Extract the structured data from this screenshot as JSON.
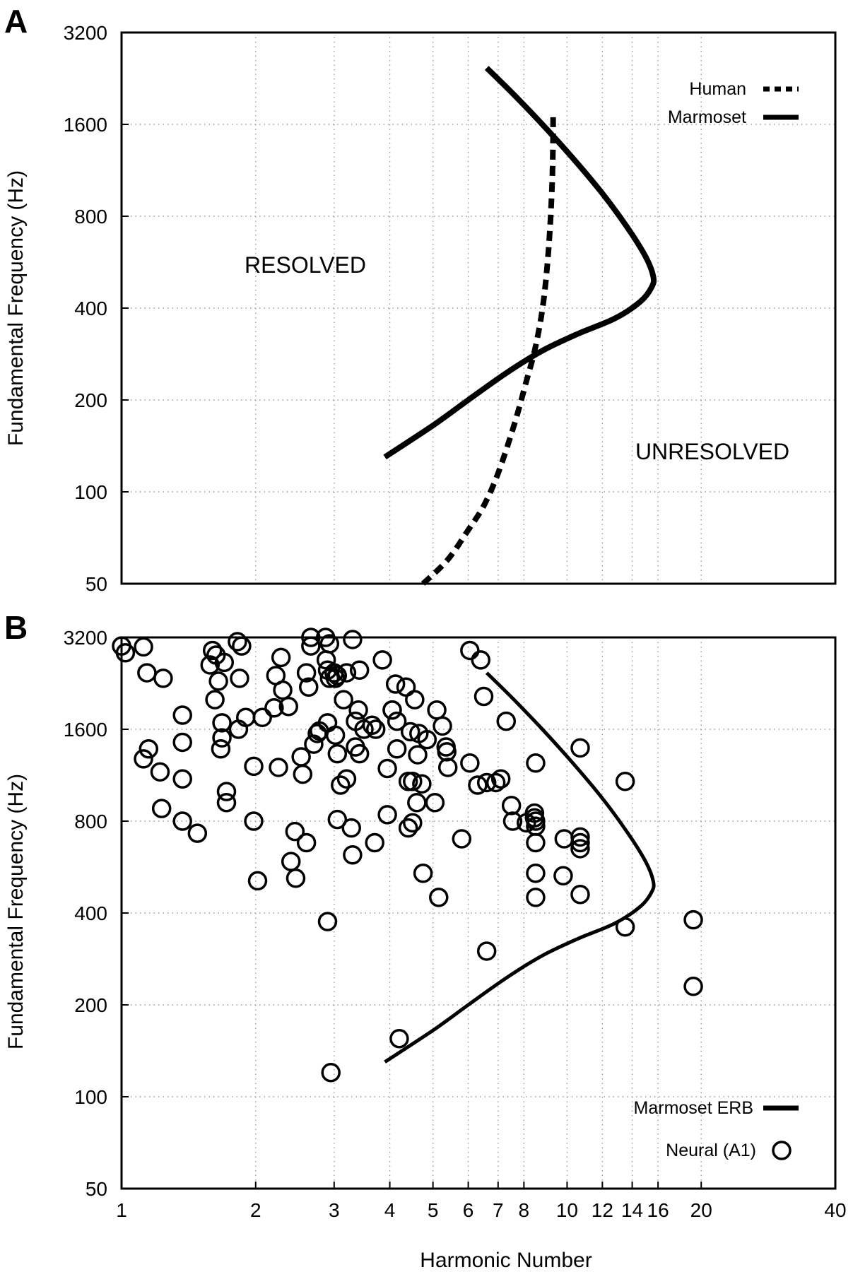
{
  "chart_data": [
    {
      "panel": "A",
      "type": "line",
      "xlabel": "",
      "ylabel": "Fundamental Frequency (Hz)",
      "xscale": "log",
      "yscale": "log2",
      "xlim": [
        1,
        40
      ],
      "ylim": [
        50,
        3200
      ],
      "yticks": [
        "50",
        "100",
        "200",
        "400",
        "800",
        "1600",
        "3200"
      ],
      "grid": true,
      "legend_position": "top-right",
      "annotations": [
        "RESOLVED",
        "UNRESOLVED"
      ],
      "series": [
        {
          "name": "Human",
          "style": "dashed",
          "x": [
            4.75,
            5.4,
            6.0,
            6.5,
            7.0,
            7.6,
            8.1,
            8.5,
            8.85,
            9.1,
            9.25,
            9.3,
            9.3
          ],
          "y": [
            50,
            60,
            75,
            90,
            115,
            165,
            230,
            300,
            420,
            640,
            1000,
            1450,
            1750
          ]
        },
        {
          "name": "Marmoset",
          "style": "solid",
          "x": [
            6.6,
            7.6,
            8.8,
            10.3,
            12.0,
            13.7,
            15.0,
            15.6,
            15.5,
            14.6,
            12.8,
            10.6,
            8.8,
            7.3,
            6.0,
            5.0,
            3.9
          ],
          "y": [
            2450,
            2000,
            1600,
            1240,
            950,
            730,
            590,
            510,
            470,
            420,
            370,
            330,
            290,
            245,
            200,
            165,
            130
          ]
        }
      ]
    },
    {
      "panel": "B",
      "type": "scatter",
      "xlabel": "Harmonic Number",
      "ylabel": "Fundamental Frequency (Hz)",
      "xscale": "log",
      "yscale": "log2",
      "xlim": [
        1,
        40
      ],
      "ylim": [
        50,
        3200
      ],
      "xticks": [
        "1",
        "2",
        "3",
        "4",
        "5",
        "6",
        "7",
        "8",
        "10",
        "12",
        "14",
        "16",
        "20",
        "40"
      ],
      "yticks": [
        "50",
        "100",
        "200",
        "400",
        "800",
        "1600",
        "3200"
      ],
      "grid": true,
      "legend_position": "bottom-right",
      "series": [
        {
          "name": "Marmoset ERB",
          "style": "solid",
          "x": [
            6.6,
            7.6,
            8.8,
            10.3,
            12.0,
            13.7,
            15.0,
            15.6,
            15.5,
            14.6,
            12.8,
            10.6,
            8.8,
            7.3,
            6.0,
            5.0,
            3.9
          ],
          "y": [
            2450,
            2000,
            1600,
            1240,
            950,
            730,
            590,
            510,
            470,
            420,
            370,
            330,
            290,
            245,
            200,
            165,
            130
          ]
        },
        {
          "name": "Neural (A1)",
          "marker": "open-circle",
          "points": [
            [
              1.0,
              3000
            ],
            [
              1.02,
              2850
            ],
            [
              1.12,
              2980
            ],
            [
              1.14,
              2450
            ],
            [
              1.24,
              2350
            ],
            [
              1.12,
              1280
            ],
            [
              1.15,
              1380
            ],
            [
              1.22,
              1160
            ],
            [
              1.23,
              880
            ],
            [
              1.37,
              800
            ],
            [
              1.37,
              1780
            ],
            [
              1.37,
              1450
            ],
            [
              1.37,
              1100
            ],
            [
              1.48,
              730
            ],
            [
              1.58,
              2600
            ],
            [
              1.6,
              2900
            ],
            [
              1.62,
              2000
            ],
            [
              1.63,
              2800
            ],
            [
              1.65,
              2300
            ],
            [
              1.7,
              2650
            ],
            [
              1.68,
              1680
            ],
            [
              1.68,
              1500
            ],
            [
              1.67,
              1380
            ],
            [
              1.72,
              1000
            ],
            [
              1.72,
              920
            ],
            [
              1.82,
              3100
            ],
            [
              1.86,
              3000
            ],
            [
              1.84,
              2350
            ],
            [
              1.83,
              1600
            ],
            [
              1.9,
              1750
            ],
            [
              1.98,
              1210
            ],
            [
              1.98,
              800
            ],
            [
              2.02,
              510
            ],
            [
              2.07,
              1750
            ],
            [
              2.2,
              1880
            ],
            [
              2.22,
              2400
            ],
            [
              2.3,
              2150
            ],
            [
              2.37,
              1900
            ],
            [
              2.28,
              2750
            ],
            [
              2.25,
              1200
            ],
            [
              2.4,
              590
            ],
            [
              2.45,
              740
            ],
            [
              2.46,
              520
            ],
            [
              2.55,
              1140
            ],
            [
              2.53,
              1300
            ],
            [
              2.6,
              680
            ],
            [
              2.6,
              2450
            ],
            [
              2.66,
              3200
            ],
            [
              2.66,
              3000
            ],
            [
              2.63,
              2200
            ],
            [
              2.7,
              1430
            ],
            [
              2.75,
              1550
            ],
            [
              2.78,
              1580
            ],
            [
              2.87,
              3200
            ],
            [
              2.88,
              2700
            ],
            [
              2.9,
              2500
            ],
            [
              2.93,
              3050
            ],
            [
              2.93,
              2350
            ],
            [
              2.9,
              1680
            ],
            [
              2.9,
              375
            ],
            [
              2.95,
              120
            ],
            [
              3.0,
              2450
            ],
            [
              3.02,
              2350
            ],
            [
              3.05,
              2400
            ],
            [
              3.02,
              1530
            ],
            [
              3.05,
              1330
            ],
            [
              3.05,
              810
            ],
            [
              3.1,
              1050
            ],
            [
              3.15,
              2000
            ],
            [
              3.2,
              2450
            ],
            [
              3.2,
              1100
            ],
            [
              3.3,
              3150
            ],
            [
              3.28,
              760
            ],
            [
              3.3,
              620
            ],
            [
              3.35,
              1700
            ],
            [
              3.4,
              1850
            ],
            [
              3.35,
              1400
            ],
            [
              3.42,
              2500
            ],
            [
              3.42,
              1330
            ],
            [
              3.5,
              1600
            ],
            [
              3.65,
              1650
            ],
            [
              3.72,
              1600
            ],
            [
              3.7,
              680
            ],
            [
              3.85,
              2700
            ],
            [
              3.95,
              1190
            ],
            [
              3.95,
              840
            ],
            [
              4.05,
              1850
            ],
            [
              4.05,
              1850
            ],
            [
              4.12,
              2250
            ],
            [
              4.15,
              1700
            ],
            [
              4.15,
              1380
            ],
            [
              4.2,
              155
            ],
            [
              4.35,
              2200
            ],
            [
              4.4,
              1080
            ],
            [
              4.45,
              1570
            ],
            [
              4.4,
              760
            ],
            [
              4.5,
              790
            ],
            [
              4.55,
              2000
            ],
            [
              4.5,
              1080
            ],
            [
              4.62,
              1320
            ],
            [
              4.6,
              920
            ],
            [
              4.65,
              1550
            ],
            [
              4.72,
              1060
            ],
            [
              4.75,
              540
            ],
            [
              4.85,
              1480
            ],
            [
              5.05,
              920
            ],
            [
              5.1,
              1850
            ],
            [
              5.15,
              450
            ],
            [
              5.25,
              1640
            ],
            [
              5.35,
              1400
            ],
            [
              5.37,
              1350
            ],
            [
              5.4,
              1200
            ],
            [
              5.8,
              700
            ],
            [
              6.05,
              2900
            ],
            [
              6.05,
              1240
            ],
            [
              6.3,
              1050
            ],
            [
              6.4,
              2700
            ],
            [
              6.5,
              2050
            ],
            [
              6.6,
              1070
            ],
            [
              6.6,
              300
            ],
            [
              6.92,
              1070
            ],
            [
              7.1,
              1100
            ],
            [
              7.3,
              1700
            ],
            [
              7.5,
              900
            ],
            [
              7.55,
              800
            ],
            [
              8.1,
              790
            ],
            [
              8.45,
              850
            ],
            [
              8.45,
              820
            ],
            [
              8.5,
              800
            ],
            [
              8.5,
              770
            ],
            [
              8.5,
              680
            ],
            [
              8.5,
              540
            ],
            [
              8.5,
              450
            ],
            [
              8.5,
              1240
            ],
            [
              9.85,
              700
            ],
            [
              9.8,
              530
            ],
            [
              10.7,
              1390
            ],
            [
              10.7,
              710
            ],
            [
              10.7,
              680
            ],
            [
              10.7,
              650
            ],
            [
              10.7,
              460
            ],
            [
              13.5,
              1080
            ],
            [
              13.5,
              360
            ],
            [
              19.2,
              380
            ],
            [
              19.2,
              230
            ]
          ]
        }
      ]
    }
  ]
}
